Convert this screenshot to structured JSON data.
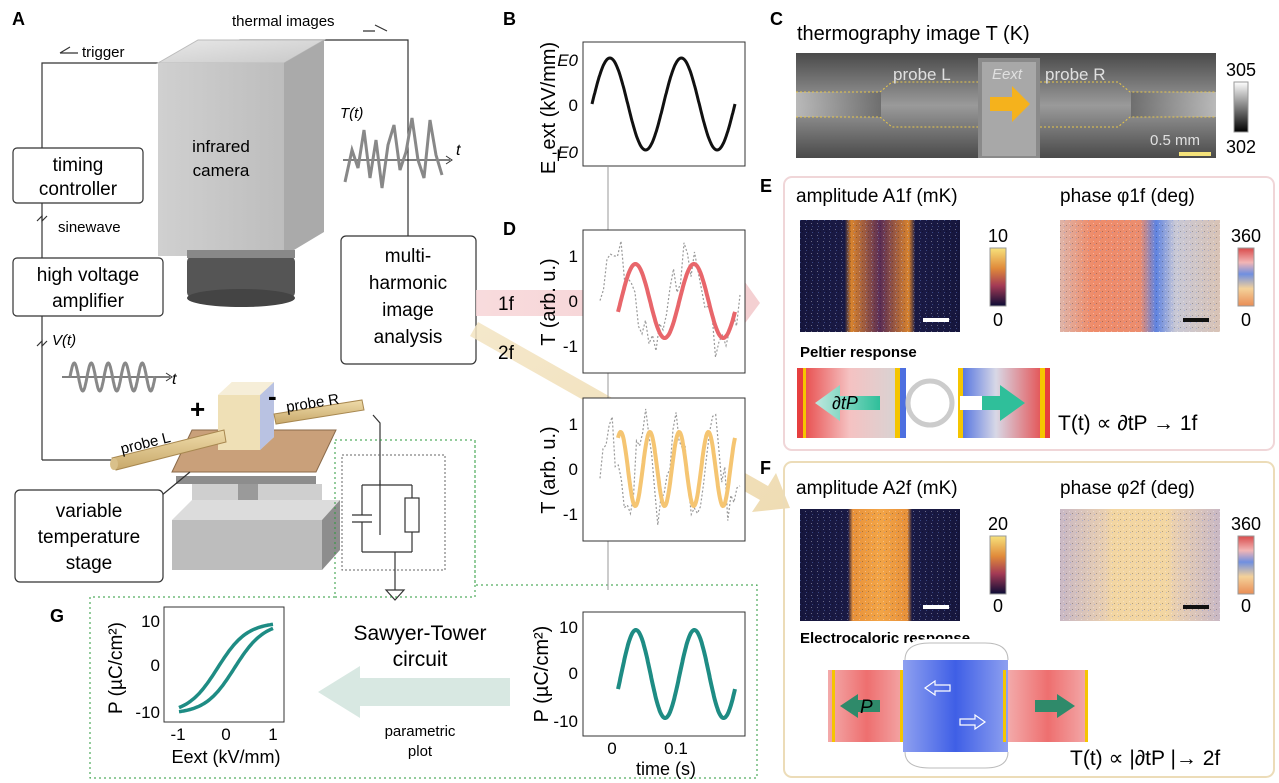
{
  "panels": {
    "A": {
      "letter": "A",
      "trigger": "trigger",
      "thermal_images": "thermal images",
      "timing_controller": [
        "timing",
        "controller"
      ],
      "sinewave": "sinewave",
      "high_voltage": [
        "high voltage",
        "amplifier"
      ],
      "vt": "V(t)",
      "t": "t",
      "camera": [
        "infrared",
        "camera"
      ],
      "tt": "T(t)",
      "analysis": [
        "multi-",
        "harmonic",
        "image",
        "analysis"
      ],
      "probe_l": "probe L",
      "probe_r": "probe R",
      "plus": "+",
      "minus": "-",
      "stage": [
        "variable",
        "temperature",
        "stage"
      ],
      "harmonic_1": "1f",
      "harmonic_2": "2f"
    },
    "B": {
      "letter": "B",
      "ylabel": "E_ext (kV/mm)",
      "ticks": [
        "E0",
        "0",
        "-E0"
      ]
    },
    "C": {
      "letter": "C",
      "title": "thermography image T (K)",
      "probe_l": "probe L",
      "probe_r": "probe R",
      "eext": "Eext",
      "scale": "0.5 mm",
      "cbar_max": "305",
      "cbar_min": "302"
    },
    "D": {
      "letter": "D",
      "ylabel": "T (arb. u.)",
      "ticks": [
        "1",
        "0",
        "-1"
      ],
      "p_ylabel": "P (µC/cm²)",
      "p_ticks": [
        "10",
        "0",
        "-10"
      ],
      "x_ticks": [
        "0",
        "0.1"
      ],
      "xlabel": "time (s)"
    },
    "E": {
      "letter": "E",
      "amp_title": "amplitude A1f (mK)",
      "phase_title": "phase φ1f (deg)",
      "amp_max": "10",
      "amp_min": "0",
      "phase_max": "360",
      "phase_min": "0",
      "response": "Peltier response",
      "dtp": "∂tP",
      "formula": "T(t) ∝ ∂tP → 1f"
    },
    "F": {
      "letter": "F",
      "amp_title": "amplitude A2f (mK)",
      "phase_title": "phase φ2f (deg)",
      "amp_max": "20",
      "amp_min": "0",
      "phase_max": "360",
      "phase_min": "0",
      "response": "Electrocaloric response",
      "p": "P",
      "formula": "T(t) ∝ |∂tP |→ 2f"
    },
    "G": {
      "letter": "G",
      "ylabel": "P (µC/cm²)",
      "y_ticks": [
        "10",
        "0",
        "-10"
      ],
      "x_ticks": [
        "-1",
        "0",
        "1"
      ],
      "xlabel": "Eext (kV/mm)",
      "sawyer": [
        "Sawyer-Tower",
        "circuit"
      ],
      "parametric": [
        "parametric",
        "plot"
      ]
    }
  },
  "colors": {
    "red_curve": "#e8666b",
    "orange_curve": "#f5c572",
    "teal_curve": "#1e8c84",
    "grey_noise": "#999999",
    "panel_e_border": "#f0d6d8",
    "panel_f_border": "#ecdcb8",
    "green_dashed": "#2a9a3a"
  },
  "chart_data": [
    {
      "type": "line",
      "id": "B",
      "ylabel": "E_ext (kV/mm)",
      "ylim": [
        -1.2,
        1.2
      ],
      "x": [
        0,
        0.2
      ],
      "series": [
        {
          "values_desc": "sine",
          "periods": 2
        }
      ]
    },
    {
      "type": "line",
      "id": "D-1f",
      "ylabel": "T (arb. u.)",
      "ylim": [
        -1.4,
        1.4
      ],
      "series": [
        {
          "periods": 2
        }
      ]
    },
    {
      "type": "line",
      "id": "D-2f",
      "ylabel": "T (arb. u.)",
      "ylim": [
        -1.4,
        1.4
      ],
      "series": [
        {
          "periods": 4
        }
      ]
    },
    {
      "type": "line",
      "id": "D-P",
      "ylabel": "P (µC/cm²)",
      "ylim": [
        -12,
        12
      ],
      "xlabel": "time (s)",
      "x_ticks": [
        0,
        0.1
      ],
      "series": [
        {
          "periods": 2
        }
      ]
    },
    {
      "type": "line",
      "id": "G",
      "xlabel": "Eext (kV/mm)",
      "ylabel": "P (µC/cm²)",
      "xlim": [
        -1.2,
        1.2
      ],
      "ylim": [
        -11,
        11
      ],
      "series": [
        {
          "type": "hysteresis"
        }
      ]
    }
  ]
}
